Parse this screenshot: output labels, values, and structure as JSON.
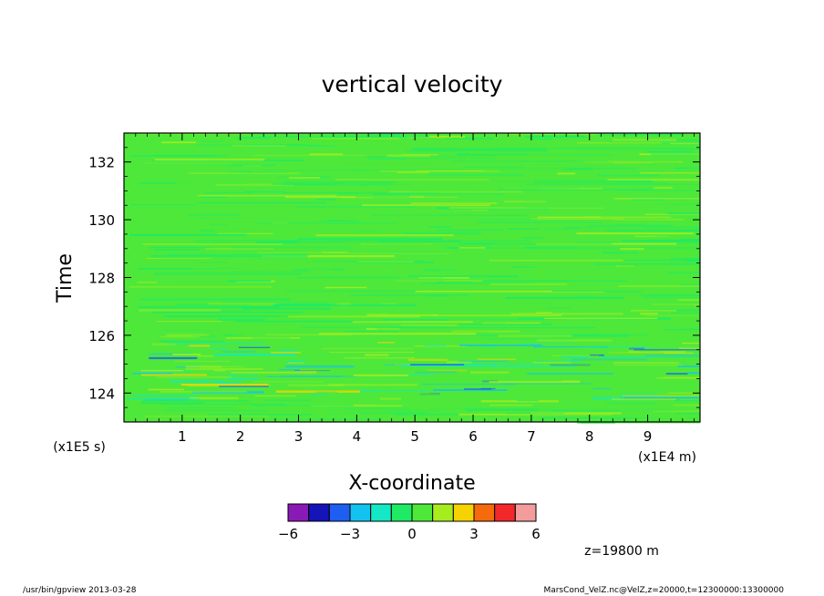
{
  "chart_data": {
    "type": "heatmap",
    "title": "vertical velocity",
    "xlabel": "X-coordinate",
    "ylabel": "Time",
    "x_units": "(x1E4 m)",
    "y_units": "(x1E5 s)",
    "xlim": [
      0,
      9.9
    ],
    "ylim": [
      123,
      133
    ],
    "x_ticks": [
      1,
      2,
      3,
      4,
      5,
      6,
      7,
      8,
      9
    ],
    "y_ticks": [
      124,
      126,
      128,
      130,
      132
    ],
    "colorbar": {
      "levels": [
        -6,
        -5,
        -4,
        -3,
        -2,
        -1,
        0,
        1,
        2,
        3,
        4,
        5,
        6
      ],
      "tick_labels": [
        "-6",
        "-3",
        "0",
        "3",
        "6"
      ],
      "colors": [
        "#8a1ab5",
        "#1414b8",
        "#1e5ef0",
        "#14c2f0",
        "#14e8c4",
        "#1eea64",
        "#4ee83a",
        "#a6ec1e",
        "#f6d200",
        "#f56a0a",
        "#f2282a",
        "#f29c9c"
      ]
    },
    "background_value": 0,
    "features": [
      {
        "description": "enhanced variability band",
        "time_range": [
          123.8,
          125.8
        ],
        "x_range": [
          0,
          9.9
        ]
      }
    ],
    "annotation": "z=19800 m"
  },
  "footer": {
    "left": "/usr/bin/gpview   2013-03-28",
    "right": "MarsCond_VelZ.nc@VelZ,z=20000,t=12300000:13300000"
  }
}
